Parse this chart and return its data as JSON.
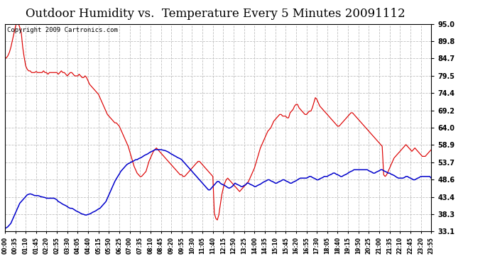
{
  "title": "Outdoor Humidity vs.  Temperature Every 5 Minutes 20091112",
  "copyright": "Copyright 2009 Cartronics.com",
  "yticks": [
    33.1,
    38.3,
    43.4,
    48.6,
    53.7,
    58.9,
    64.0,
    69.2,
    74.4,
    79.5,
    84.7,
    89.8,
    95.0
  ],
  "ylim": [
    33.1,
    95.0
  ],
  "bg_color": "#ffffff",
  "grid_color": "#c0c0c0",
  "line_color_red": "#dd0000",
  "line_color_blue": "#0000cc",
  "title_fontsize": 12,
  "copyright_fontsize": 6.5,
  "x_labels": [
    "00:00",
    "00:35",
    "01:10",
    "01:45",
    "02:20",
    "02:55",
    "03:30",
    "04:05",
    "04:40",
    "05:15",
    "05:50",
    "06:25",
    "07:00",
    "07:35",
    "08:10",
    "08:45",
    "09:20",
    "09:55",
    "10:30",
    "11:05",
    "11:40",
    "12:15",
    "12:50",
    "13:25",
    "14:00",
    "14:35",
    "15:10",
    "15:45",
    "16:20",
    "16:55",
    "17:30",
    "18:05",
    "18:40",
    "19:15",
    "19:50",
    "20:25",
    "21:00",
    "21:35",
    "22:10",
    "22:45",
    "23:20",
    "23:55"
  ],
  "red_data": [
    84.7,
    84.9,
    85.5,
    86.5,
    88.0,
    90.0,
    92.0,
    94.0,
    95.5,
    95.2,
    94.0,
    92.5,
    88.0,
    85.0,
    82.5,
    81.5,
    81.0,
    81.0,
    80.5,
    80.5,
    80.5,
    80.8,
    80.5,
    80.5,
    80.5,
    80.5,
    81.0,
    80.5,
    80.5,
    80.0,
    80.5,
    80.5,
    80.5,
    80.5,
    80.5,
    80.5,
    80.0,
    80.5,
    81.0,
    80.5,
    80.5,
    80.0,
    79.5,
    80.0,
    80.5,
    80.5,
    80.0,
    79.5,
    79.5,
    79.5,
    80.0,
    79.5,
    79.0,
    79.0,
    79.5,
    79.0,
    78.0,
    77.0,
    76.5,
    76.0,
    75.5,
    75.0,
    74.5,
    74.0,
    73.0,
    72.0,
    71.0,
    70.0,
    69.0,
    68.0,
    67.5,
    67.0,
    66.5,
    66.0,
    65.5,
    65.5,
    65.0,
    64.5,
    63.5,
    62.5,
    61.5,
    60.5,
    59.5,
    58.5,
    57.0,
    55.5,
    54.0,
    52.5,
    51.5,
    50.5,
    50.0,
    49.5,
    49.5,
    50.0,
    50.5,
    51.0,
    52.5,
    54.0,
    55.0,
    56.0,
    57.0,
    57.5,
    58.0,
    57.5,
    57.0,
    56.5,
    56.0,
    55.5,
    55.0,
    54.5,
    54.0,
    53.5,
    53.0,
    52.5,
    52.0,
    51.5,
    51.0,
    50.5,
    50.0,
    50.0,
    49.5,
    49.5,
    50.0,
    50.5,
    51.0,
    51.5,
    52.0,
    52.5,
    53.0,
    53.5,
    54.0,
    54.0,
    53.5,
    53.0,
    52.5,
    52.0,
    51.5,
    51.0,
    50.5,
    50.0,
    49.5,
    38.5,
    37.0,
    36.5,
    38.0,
    41.0,
    44.0,
    46.0,
    47.5,
    48.5,
    49.0,
    48.5,
    48.0,
    47.5,
    47.0,
    46.5,
    46.0,
    45.5,
    45.0,
    45.5,
    46.0,
    46.5,
    47.0,
    47.5,
    48.0,
    49.0,
    50.0,
    51.0,
    52.0,
    53.5,
    55.0,
    56.5,
    58.0,
    59.0,
    60.0,
    61.0,
    62.0,
    63.0,
    63.5,
    64.0,
    65.0,
    66.0,
    66.5,
    67.0,
    67.5,
    68.0,
    68.0,
    67.5,
    67.5,
    67.5,
    67.0,
    67.0,
    68.5,
    69.0,
    69.5,
    70.5,
    71.0,
    71.0,
    70.0,
    69.5,
    69.0,
    68.5,
    68.0,
    68.0,
    68.5,
    69.0,
    69.0,
    70.0,
    71.5,
    73.0,
    72.5,
    71.5,
    70.5,
    70.0,
    69.5,
    69.0,
    68.5,
    68.0,
    67.5,
    67.0,
    66.5,
    66.0,
    65.5,
    65.0,
    64.5,
    64.5,
    65.0,
    65.5,
    66.0,
    66.5,
    67.0,
    67.5,
    68.0,
    68.5,
    68.5,
    68.0,
    67.5,
    67.0,
    66.5,
    66.0,
    65.5,
    65.0,
    64.5,
    64.0,
    63.5,
    63.0,
    62.5,
    62.0,
    61.5,
    61.0,
    60.5,
    60.0,
    59.5,
    59.0,
    58.5,
    50.0,
    49.5,
    50.0,
    51.0,
    52.0,
    53.0,
    54.0,
    55.0,
    55.5,
    56.0,
    56.5,
    57.0,
    57.5,
    58.0,
    58.5,
    59.0,
    58.5,
    58.0,
    57.5,
    57.0,
    57.5,
    58.0,
    57.5,
    57.0,
    56.5,
    56.0,
    55.5,
    55.5,
    55.5,
    56.0,
    56.5,
    57.0,
    57.5
  ],
  "blue_data": [
    34.0,
    34.2,
    34.5,
    35.0,
    35.5,
    36.5,
    37.5,
    38.5,
    39.5,
    40.5,
    41.5,
    42.0,
    42.5,
    43.0,
    43.5,
    44.0,
    44.2,
    44.3,
    44.2,
    44.0,
    43.8,
    43.8,
    43.8,
    43.7,
    43.5,
    43.4,
    43.3,
    43.2,
    43.0,
    43.0,
    43.0,
    43.0,
    43.0,
    43.0,
    42.8,
    42.5,
    42.0,
    41.8,
    41.5,
    41.2,
    41.0,
    40.8,
    40.5,
    40.2,
    40.0,
    40.0,
    39.8,
    39.5,
    39.2,
    39.0,
    38.8,
    38.5,
    38.3,
    38.2,
    38.0,
    38.0,
    38.2,
    38.3,
    38.5,
    38.8,
    39.0,
    39.2,
    39.5,
    39.8,
    40.0,
    40.5,
    41.0,
    41.5,
    42.0,
    43.0,
    44.0,
    45.0,
    46.0,
    47.0,
    48.0,
    48.8,
    49.5,
    50.2,
    51.0,
    51.5,
    52.0,
    52.5,
    53.0,
    53.3,
    53.5,
    53.8,
    54.0,
    54.2,
    54.5,
    54.5,
    54.8,
    55.0,
    55.2,
    55.5,
    55.8,
    56.0,
    56.2,
    56.5,
    56.8,
    57.0,
    57.2,
    57.5,
    57.5,
    57.5,
    57.5,
    57.5,
    57.4,
    57.3,
    57.2,
    57.0,
    56.8,
    56.5,
    56.2,
    56.0,
    55.7,
    55.5,
    55.2,
    55.0,
    54.8,
    54.5,
    54.0,
    53.5,
    53.0,
    52.5,
    52.0,
    51.5,
    51.0,
    50.5,
    50.0,
    49.5,
    49.0,
    48.5,
    48.0,
    47.5,
    47.0,
    46.5,
    46.0,
    45.5,
    45.5,
    46.0,
    46.5,
    47.0,
    47.5,
    48.0,
    48.0,
    47.5,
    47.2,
    47.0,
    46.8,
    46.5,
    46.2,
    46.0,
    46.2,
    46.5,
    47.0,
    47.5,
    47.2,
    47.0,
    46.8,
    46.5,
    46.5,
    46.8,
    47.0,
    47.5,
    47.5,
    47.2,
    47.0,
    46.8,
    46.5,
    46.5,
    46.8,
    47.0,
    47.2,
    47.5,
    47.8,
    48.0,
    48.2,
    48.5,
    48.5,
    48.2,
    48.0,
    47.8,
    47.5,
    47.5,
    47.8,
    48.0,
    48.2,
    48.5,
    48.5,
    48.2,
    48.0,
    47.8,
    47.5,
    47.5,
    47.8,
    48.0,
    48.2,
    48.5,
    48.8,
    49.0,
    49.0,
    49.0,
    49.0,
    49.0,
    49.2,
    49.5,
    49.5,
    49.2,
    49.0,
    48.8,
    48.5,
    48.5,
    48.8,
    49.0,
    49.2,
    49.5,
    49.5,
    49.5,
    49.8,
    50.0,
    50.2,
    50.5,
    50.5,
    50.2,
    50.0,
    49.8,
    49.5,
    49.5,
    49.8,
    50.0,
    50.2,
    50.5,
    50.8,
    51.0,
    51.2,
    51.5,
    51.5,
    51.5,
    51.5,
    51.5,
    51.5,
    51.5,
    51.5,
    51.5,
    51.5,
    51.2,
    51.0,
    50.8,
    50.5,
    50.5,
    50.8,
    51.0,
    51.2,
    51.5,
    51.5,
    51.2,
    51.0,
    50.8,
    50.5,
    50.5,
    50.2,
    50.0,
    49.8,
    49.5,
    49.2,
    49.0,
    49.0,
    49.0,
    49.0,
    49.2,
    49.5,
    49.5,
    49.2,
    49.0,
    48.8,
    48.5,
    48.5,
    48.8,
    49.0,
    49.2,
    49.5,
    49.5,
    49.5,
    49.5,
    49.5,
    49.5,
    49.5,
    49.0
  ]
}
